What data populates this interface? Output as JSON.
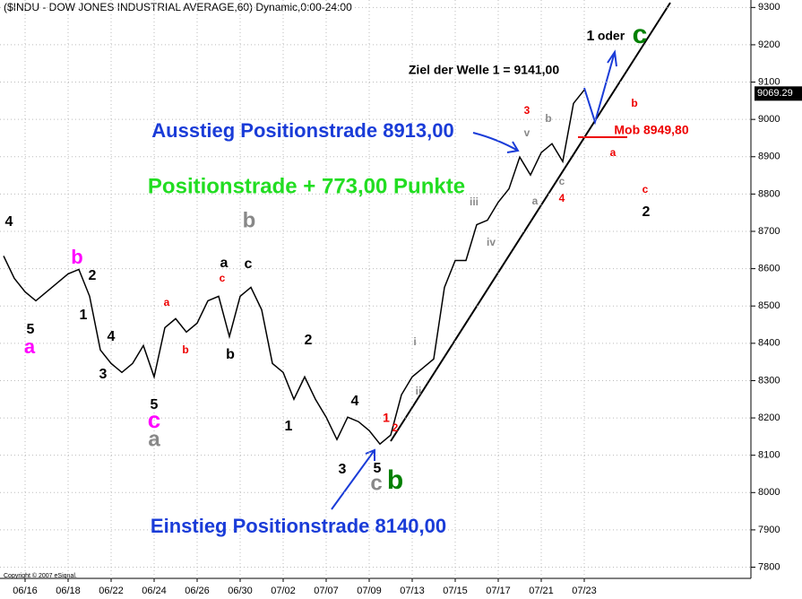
{
  "chart_data": {
    "type": "line",
    "title": "($INDU - DOW JONES INDUSTRIAL AVERAGE,60) Dynamic,0:00-24:00",
    "copyright": "Copyright © 2007 eSignal.",
    "categories": [
      null,
      null,
      "06/16",
      null,
      null,
      null,
      "06/18",
      null,
      null,
      null,
      "06/22",
      null,
      null,
      null,
      "06/24",
      null,
      null,
      null,
      "06/26",
      null,
      null,
      null,
      "06/30",
      null,
      null,
      null,
      "07/02",
      null,
      null,
      null,
      "07/07",
      null,
      null,
      null,
      "07/09",
      null,
      null,
      null,
      "07/13",
      null,
      null,
      null,
      "07/15",
      null,
      null,
      null,
      "07/17",
      null,
      null,
      null,
      "07/21",
      null,
      null,
      null,
      "07/23"
    ],
    "series": [
      {
        "name": "$INDU",
        "color": "#000000",
        "values": [
          8634,
          8574,
          8538,
          8514,
          8538,
          8562,
          8586,
          8598,
          8526,
          8382,
          8346,
          8322,
          8346,
          8394,
          8310,
          8442,
          8466,
          8430,
          8454,
          8514,
          8526,
          8418,
          8526,
          8550,
          8490,
          8346,
          8322,
          8250,
          8310,
          8250,
          8202,
          8142,
          8202,
          8190,
          8166,
          8130,
          8154,
          8262,
          8310,
          8334,
          8358,
          8550,
          8622,
          8622,
          8718,
          8730,
          8778,
          8814,
          8899,
          8851,
          8911,
          8935,
          8887,
          9043,
          9079
        ]
      }
    ],
    "last_value": 9069.29,
    "ylim": [
      7770,
      9320
    ],
    "yticks": [
      7800,
      7900,
      8000,
      8100,
      8200,
      8300,
      8400,
      8500,
      8600,
      8700,
      8800,
      8900,
      9000,
      9100,
      9200,
      9300
    ],
    "grid": true,
    "annotations": [
      "4",
      "5",
      "a",
      "b",
      "2",
      "1",
      "4",
      "3",
      "5",
      "c",
      "a",
      "a",
      "b",
      "a",
      "c",
      "b",
      "c",
      "b",
      "2",
      "1",
      "4",
      "1",
      "3",
      "5",
      "c",
      "b",
      "2",
      "i",
      "ii",
      "iii",
      "iv",
      "v",
      "3",
      "a",
      "b",
      "c",
      "4",
      "b",
      "a",
      "c",
      "2",
      "1",
      "oder",
      "c",
      "Mob 8949,80",
      "Ziel der Welle 1 = 9141,00",
      "Ausstieg Positionstrade 8913,00",
      "Positionstrade + 773,00 Punkte",
      "Einstieg Positionstrade 8140,00"
    ]
  }
}
